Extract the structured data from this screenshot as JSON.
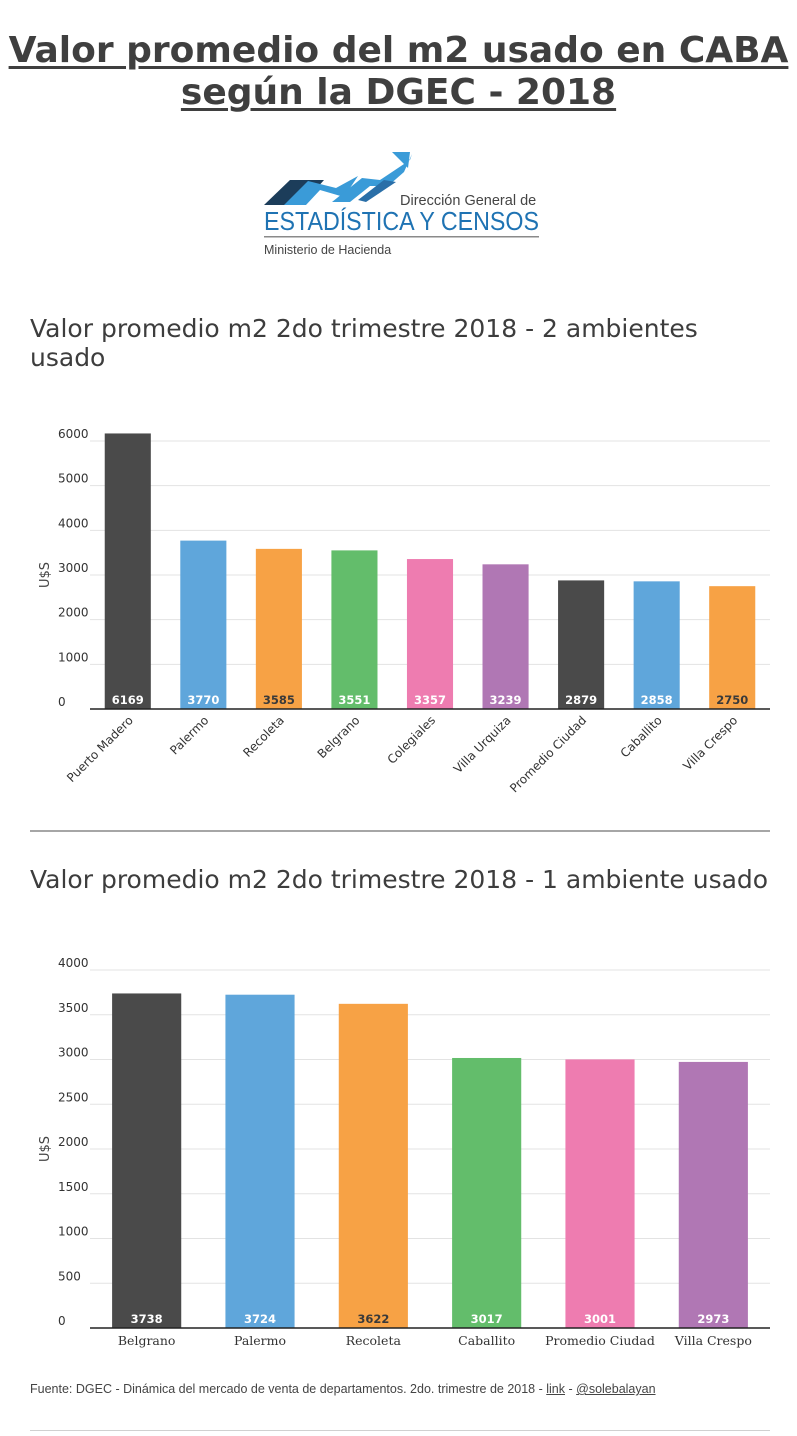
{
  "page": {
    "title_line1": "Valor promedio del m2 usado en CABA",
    "title_line2": "según la DGEC - 2018"
  },
  "logo": {
    "line1": "Dirección General de",
    "line2": "ESTADÍSTICA Y CENSOS",
    "line3": "Ministerio de Hacienda",
    "color_dark": "#1c3d5a",
    "color_light": "#3a9bd8"
  },
  "chart_data": [
    {
      "type": "bar",
      "title": "Valor promedio m2 2do trimestre  2018 - 2 ambientes usado",
      "ylabel": "U$S",
      "xlabel": "",
      "ylim": [
        0,
        6000
      ],
      "yticks": [
        0,
        1000,
        2000,
        3000,
        4000,
        5000,
        6000
      ],
      "categories": [
        "Puerto Madero",
        "Palermo",
        "Recoleta",
        "Belgrano",
        "Colegiales",
        "Villa Urquiza",
        "Promedio Ciudad",
        "Caballito",
        "Villa Crespo"
      ],
      "values": [
        6169,
        3770,
        3585,
        3551,
        3357,
        3239,
        2879,
        2858,
        2750
      ],
      "colors": [
        "#4a4a4a",
        "#5fa6db",
        "#f7a245",
        "#63bd6b",
        "#ee7cb0",
        "#b077b4",
        "#4a4a4a",
        "#5fa6db",
        "#f7a245"
      ],
      "grid": true,
      "data_labels": true
    },
    {
      "type": "bar",
      "title": "Valor promedio m2 2do trimestre  2018 - 1 ambiente usado",
      "ylabel": "U$S",
      "xlabel": "",
      "ylim": [
        0,
        4000
      ],
      "yticks": [
        0,
        500,
        1000,
        1500,
        2000,
        2500,
        3000,
        3500,
        4000
      ],
      "categories": [
        "Belgrano",
        "Palermo",
        "Recoleta",
        "Caballito",
        "Promedio Ciudad",
        "Villa Crespo"
      ],
      "values": [
        3738,
        3724,
        3622,
        3017,
        3001,
        2973
      ],
      "colors": [
        "#4a4a4a",
        "#5fa6db",
        "#f7a245",
        "#63bd6b",
        "#ee7cb0",
        "#b077b4"
      ],
      "grid": true,
      "data_labels": true
    }
  ],
  "footer": {
    "source_text": "Fuente: DGEC - Dinámica del mercado de venta de departamentos. 2do. trimestre de 2018 - ",
    "link_label": "link",
    "separator": " - ",
    "handle": "@solebalayan"
  }
}
